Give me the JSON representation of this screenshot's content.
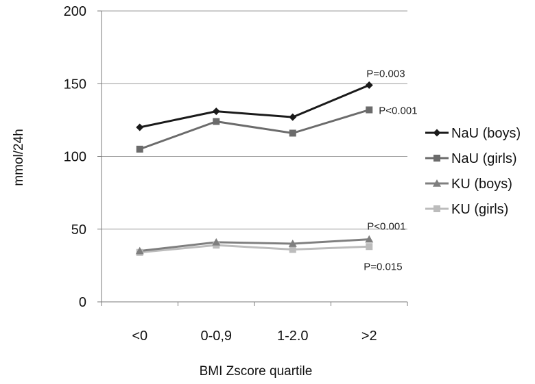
{
  "chart_data": {
    "type": "line",
    "title": "",
    "xlabel": "BMI Zscore quartile",
    "ylabel": "mmol/24h",
    "categories": [
      "<0",
      "0-0,9",
      "1-2.0",
      ">2"
    ],
    "ylim": [
      0,
      200
    ],
    "yticks": [
      0,
      50,
      100,
      150,
      200
    ],
    "grid": "horizontal",
    "legend_position": "right",
    "series": [
      {
        "name": "NaU (boys)",
        "values": [
          120,
          131,
          127,
          149
        ],
        "color": "#1a1a1a",
        "marker": "diamond"
      },
      {
        "name": "NaU (girls)",
        "values": [
          105,
          124,
          116,
          132
        ],
        "color": "#6b6b6b",
        "marker": "square"
      },
      {
        "name": "KU (boys)",
        "values": [
          35,
          41,
          40,
          43
        ],
        "color": "#7f7f7f",
        "marker": "triangle"
      },
      {
        "name": "KU (girls)",
        "values": [
          34,
          39,
          36,
          38
        ],
        "color": "#bcbcbc",
        "marker": "square"
      }
    ],
    "annotations": [
      {
        "text": "P=0.003",
        "series": 0,
        "at_category": 3
      },
      {
        "text": "P<0.001",
        "series": 1,
        "at_category": 3
      },
      {
        "text": "P<0.001",
        "series": 2,
        "at_category": 3
      },
      {
        "text": "P=0.015",
        "series": 3,
        "at_category": 3
      }
    ]
  }
}
